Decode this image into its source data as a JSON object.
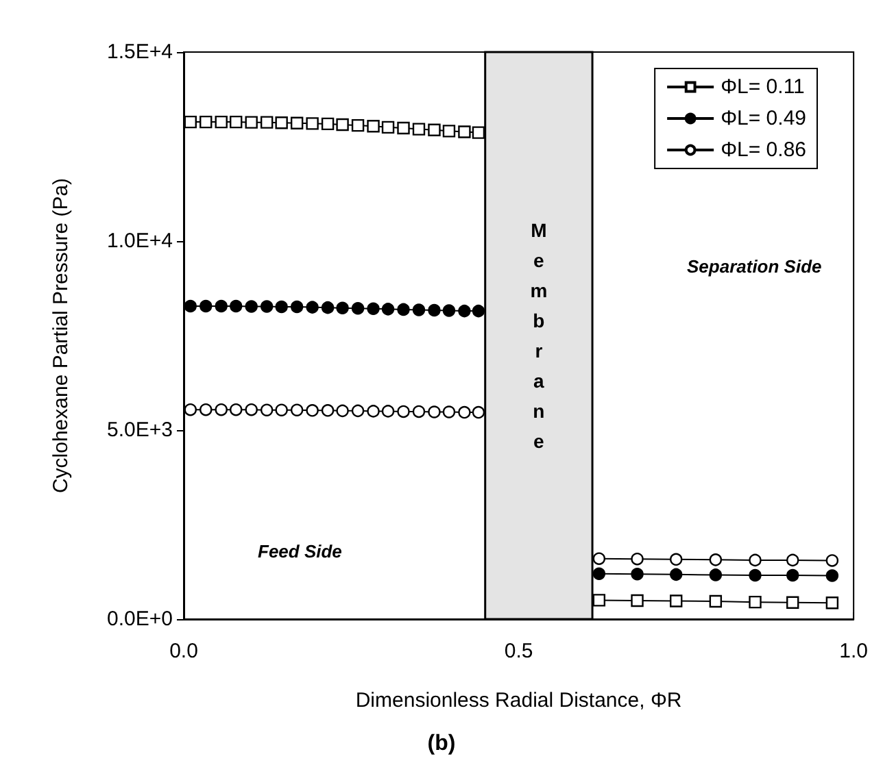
{
  "chart_data": {
    "type": "line",
    "title": "(b)",
    "xlabel": "Dimensionless Radial Distance, ΦR",
    "ylabel": "Cyclohexane Partial Pressure (Pa)",
    "x": [
      0.01,
      0.033,
      0.056,
      0.078,
      0.101,
      0.124,
      0.146,
      0.169,
      0.192,
      0.215,
      0.237,
      0.26,
      0.283,
      0.305,
      0.328,
      0.351,
      0.374,
      0.396,
      0.419,
      0.44,
      0.53,
      0.62,
      0.677,
      0.735,
      0.794,
      0.853,
      0.909,
      0.968
    ],
    "series": [
      {
        "name": "ΦL= 0.11",
        "color": "#ffffff",
        "marker": "square",
        "values": [
          13150,
          13150,
          13150,
          13150,
          13140,
          13140,
          13130,
          13120,
          13110,
          13100,
          13080,
          13060,
          13040,
          13010,
          12990,
          12960,
          12940,
          12910,
          12890,
          12870,
          null,
          500,
          490,
          480,
          470,
          450,
          440,
          430
        ]
      },
      {
        "name": "ΦL= 0.49",
        "color": "#000000",
        "marker": "circle",
        "values": [
          8280,
          8280,
          8280,
          8280,
          8270,
          8270,
          8260,
          8260,
          8250,
          8240,
          8230,
          8220,
          8210,
          8200,
          8190,
          8180,
          8170,
          8160,
          8150,
          8150,
          null,
          1200,
          1190,
          1180,
          1170,
          1160,
          1160,
          1150
        ]
      },
      {
        "name": "ΦL= 0.86",
        "color": "#ffffff",
        "marker": "circle",
        "values": [
          5540,
          5540,
          5540,
          5540,
          5540,
          5530,
          5530,
          5530,
          5520,
          5520,
          5510,
          5510,
          5500,
          5500,
          5490,
          5490,
          5480,
          5480,
          5470,
          5470,
          null,
          1600,
          1590,
          1580,
          1570,
          1560,
          1560,
          1550
        ]
      }
    ],
    "xlim": [
      0,
      1
    ],
    "xticks": [
      {
        "value": 0,
        "label": "0.0"
      },
      {
        "value": 0.5,
        "label": "0.5"
      },
      {
        "value": 1,
        "label": "1.0"
      }
    ],
    "ylim": [
      0,
      15000
    ],
    "yticks": [
      {
        "value": 0,
        "label": "0.0E+0"
      },
      {
        "value": 5000,
        "label": "5.0E+3"
      },
      {
        "value": 10000,
        "label": "1.0E+4"
      },
      {
        "value": 15000,
        "label": "1.5E+4"
      }
    ],
    "bands": [
      {
        "axis": "x",
        "from": 0.45,
        "to": 0.61,
        "label": "Membrane",
        "color": "#e4e4e4"
      }
    ],
    "annotations": [
      "Feed Side",
      "Separation Side"
    ],
    "grid": false,
    "legend": "top right",
    "line_style": "solid"
  }
}
